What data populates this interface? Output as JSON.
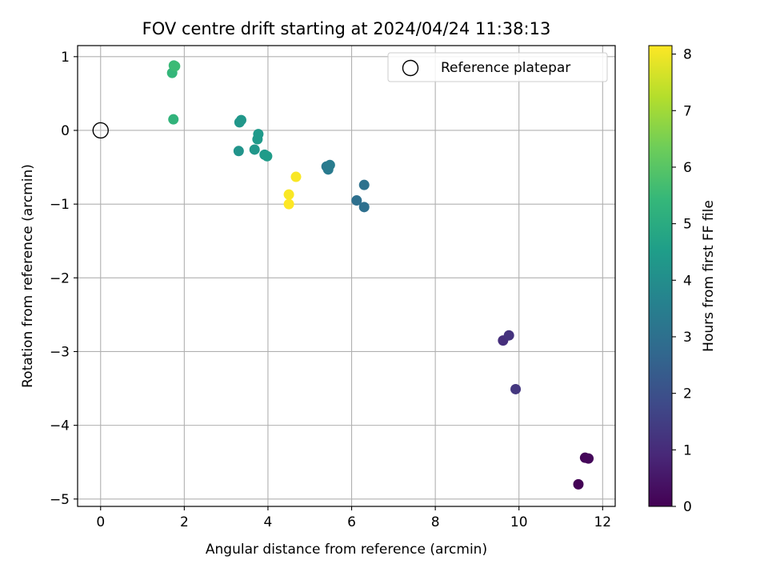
{
  "chart_data": {
    "type": "scatter",
    "title": "FOV centre drift starting at 2024/04/24 11:38:13",
    "xlabel": "Angular distance from reference (arcmin)",
    "ylabel": "Rotation from reference (arcmin)",
    "xlim": [
      -0.55,
      12.3
    ],
    "ylim": [
      -5.1,
      1.15
    ],
    "x_ticks": [
      0,
      2,
      4,
      6,
      8,
      10,
      12
    ],
    "y_ticks": [
      1,
      0,
      -1,
      -2,
      -3,
      -4,
      -5
    ],
    "y_tick_labels": [
      "1",
      "0",
      "−1",
      "−2",
      "−3",
      "−4",
      "−5"
    ],
    "grid": true,
    "legend": {
      "position": "top-right",
      "entries": [
        "Reference platepar"
      ]
    },
    "reference_point": {
      "name": "Reference platepar",
      "x": 0,
      "y": 0,
      "marker": "open-circle"
    },
    "colorbar": {
      "label": "Hours from first FF file",
      "colormap": "viridis",
      "range": [
        0,
        8.15
      ],
      "ticks": [
        0,
        1,
        2,
        3,
        4,
        5,
        6,
        7,
        8
      ]
    },
    "points": [
      {
        "x": 11.42,
        "y": -4.8,
        "c": 0.05
      },
      {
        "x": 11.58,
        "y": -4.44,
        "c": 0.1
      },
      {
        "x": 11.66,
        "y": -4.45,
        "c": 0.15
      },
      {
        "x": 9.62,
        "y": -2.85,
        "c": 1.1
      },
      {
        "x": 9.76,
        "y": -2.78,
        "c": 1.2
      },
      {
        "x": 9.92,
        "y": -3.51,
        "c": 1.3
      },
      {
        "x": 6.12,
        "y": -0.95,
        "c": 3.0
      },
      {
        "x": 6.3,
        "y": -1.04,
        "c": 3.0
      },
      {
        "x": 6.3,
        "y": -0.74,
        "c": 3.05
      },
      {
        "x": 5.4,
        "y": -0.49,
        "c": 3.3
      },
      {
        "x": 5.44,
        "y": -0.53,
        "c": 3.35
      },
      {
        "x": 5.48,
        "y": -0.47,
        "c": 3.4
      },
      {
        "x": 3.3,
        "y": -0.28,
        "c": 4.2
      },
      {
        "x": 3.32,
        "y": 0.11,
        "c": 4.3
      },
      {
        "x": 3.36,
        "y": 0.14,
        "c": 4.3
      },
      {
        "x": 3.68,
        "y": -0.26,
        "c": 4.3
      },
      {
        "x": 3.75,
        "y": -0.12,
        "c": 4.4
      },
      {
        "x": 3.77,
        "y": -0.05,
        "c": 4.4
      },
      {
        "x": 3.92,
        "y": -0.33,
        "c": 4.4
      },
      {
        "x": 3.98,
        "y": -0.35,
        "c": 4.45
      },
      {
        "x": 1.74,
        "y": 0.15,
        "c": 5.3
      },
      {
        "x": 1.71,
        "y": 0.78,
        "c": 5.4
      },
      {
        "x": 1.75,
        "y": 0.88,
        "c": 5.5
      },
      {
        "x": 1.78,
        "y": 0.87,
        "c": 5.55
      },
      {
        "x": 4.67,
        "y": -0.63,
        "c": 8.1
      },
      {
        "x": 4.5,
        "y": -0.87,
        "c": 8.1
      },
      {
        "x": 4.5,
        "y": -1.0,
        "c": 8.15
      }
    ]
  }
}
